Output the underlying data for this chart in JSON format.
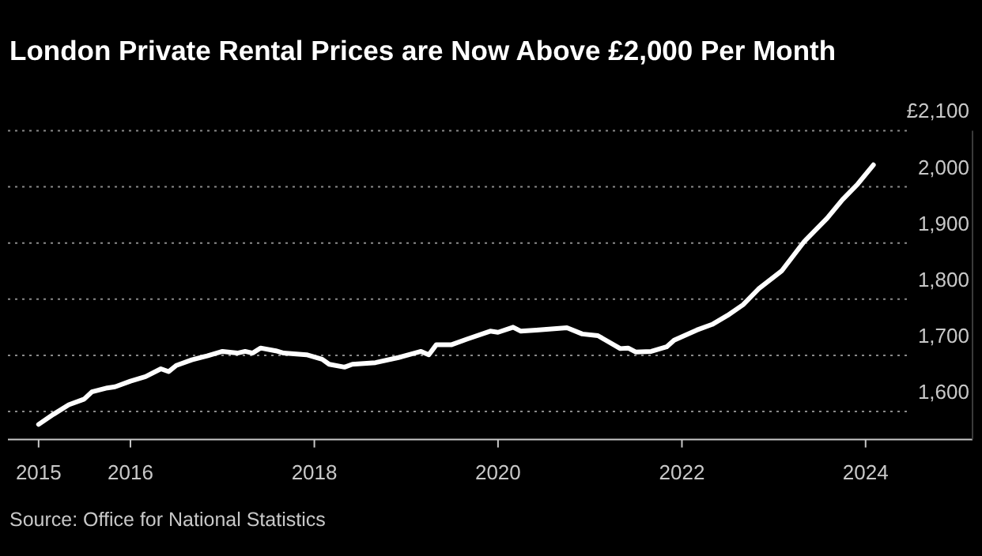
{
  "chart_data": {
    "type": "line",
    "title": "London Private Rental Prices are Now Above £2,000 Per Month",
    "annotations": [
      "Source: Office for National Statistics"
    ],
    "x": [
      "2015-01",
      "2015-03",
      "2015-05",
      "2015-07",
      "2015-08",
      "2015-10",
      "2015-11",
      "2016-01",
      "2016-03",
      "2016-05",
      "2016-06",
      "2016-07",
      "2016-09",
      "2016-11",
      "2017-01",
      "2017-03",
      "2017-04",
      "2017-05",
      "2017-06",
      "2017-08",
      "2017-09",
      "2017-12",
      "2018-02",
      "2018-03",
      "2018-05",
      "2018-06",
      "2018-09",
      "2018-12",
      "2019-03",
      "2019-04",
      "2019-05",
      "2019-07",
      "2019-09",
      "2019-12",
      "2020-01",
      "2020-03",
      "2020-04",
      "2020-06",
      "2020-10",
      "2020-12",
      "2021-02",
      "2021-05",
      "2021-06",
      "2021-07",
      "2021-09",
      "2021-11",
      "2021-12",
      "2022-03",
      "2022-05",
      "2022-07",
      "2022-09",
      "2022-11",
      "2023-02",
      "2023-05",
      "2023-08",
      "2023-10",
      "2023-12",
      "2024-02"
    ],
    "series": [
      {
        "color": "#ffffff",
        "values": [
          1577,
          1595,
          1612,
          1622,
          1635,
          1642,
          1644,
          1654,
          1662,
          1676,
          1671,
          1682,
          1692,
          1699,
          1707,
          1704,
          1707,
          1704,
          1713,
          1708,
          1704,
          1701,
          1693,
          1684,
          1679,
          1684,
          1687,
          1696,
          1707,
          1701,
          1719,
          1719,
          1729,
          1743,
          1741,
          1750,
          1743,
          1745,
          1749,
          1738,
          1735,
          1712,
          1713,
          1706,
          1707,
          1715,
          1727,
          1745,
          1755,
          1771,
          1790,
          1818,
          1850,
          1902,
          1944,
          1977,
          2005,
          2039
        ]
      }
    ],
    "xlim": [
      "2014-09",
      "2025-03"
    ],
    "xticks": [
      {
        "value": "2015",
        "label": "2015"
      },
      {
        "value": "2016",
        "label": "2016"
      },
      {
        "value": "2018",
        "label": "2018"
      },
      {
        "value": "2020",
        "label": "2020"
      },
      {
        "value": "2022",
        "label": "2022"
      },
      {
        "value": "2024",
        "label": "2024"
      }
    ],
    "ylim": [
      1550,
      2100
    ],
    "yticks": [
      {
        "value": 1600,
        "label": "1,600"
      },
      {
        "value": 1700,
        "label": "1,700"
      },
      {
        "value": 1800,
        "label": "1,800"
      },
      {
        "value": 1900,
        "label": "1,900"
      },
      {
        "value": 2000,
        "label": "2,000"
      },
      {
        "value": 2100,
        "label": "£2,100"
      }
    ],
    "grid": "y",
    "line_style": "solid"
  }
}
